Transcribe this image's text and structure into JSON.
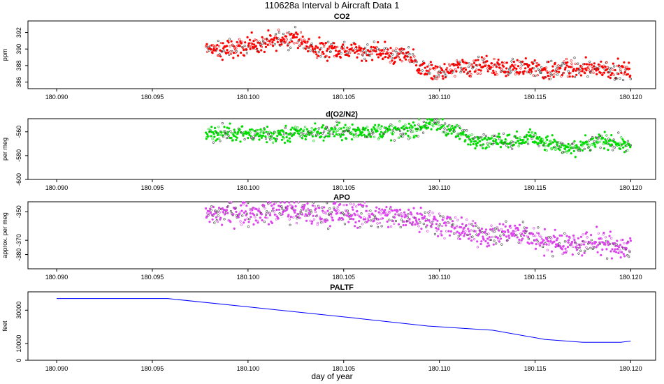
{
  "figure": {
    "title": "110628a   Interval b Aircraft Data 1",
    "xlabel": "day of year"
  },
  "chart_data": [
    {
      "type": "scatter",
      "title": "CO2",
      "ylabel": "ppm",
      "color": "#ff0000",
      "xlim": [
        180.0885,
        180.1213
      ],
      "ylim": [
        385.2,
        393.4
      ],
      "x_ticks": [
        "180.090",
        "180.095",
        "180.100",
        "180.105",
        "180.110",
        "180.115",
        "180.120"
      ],
      "y_ticks": [
        "386",
        "388",
        "390",
        "392"
      ],
      "series": [
        {
          "values_desc": "approximate trend sampled every 0.0005 day",
          "x": [
            180.0978,
            180.0985,
            180.099,
            180.0995,
            180.1,
            180.1005,
            180.101,
            180.1015,
            180.102,
            180.1025,
            180.103,
            180.1035,
            180.104,
            180.1045,
            180.105,
            180.1055,
            180.106,
            180.1065,
            180.107,
            180.1075,
            180.108,
            180.1085,
            180.109,
            180.1095,
            180.11,
            180.1105,
            180.111,
            180.1115,
            180.112,
            180.1125,
            180.113,
            180.1135,
            180.114,
            180.1145,
            180.115,
            180.1155,
            180.116,
            180.1165,
            180.117,
            180.1175,
            180.118,
            180.1185,
            180.119,
            180.1195,
            180.12
          ],
          "y": [
            390.2,
            390.0,
            389.9,
            390.2,
            390.6,
            390.4,
            390.7,
            391.0,
            391.3,
            391.5,
            390.5,
            390.0,
            389.9,
            390.0,
            389.8,
            389.7,
            389.7,
            389.9,
            389.6,
            389.2,
            389.3,
            389.3,
            387.4,
            387.3,
            387.2,
            387.3,
            387.8,
            387.5,
            387.8,
            388.0,
            387.6,
            387.6,
            387.7,
            387.7,
            387.8,
            387.3,
            387.4,
            387.8,
            387.5,
            387.6,
            387.7,
            387.7,
            387.5,
            387.5,
            387.2
          ]
        }
      ]
    },
    {
      "type": "scatter",
      "title": "d(O2/N2)",
      "ylabel": "per meg",
      "color": "#00dd00",
      "xlim": [
        180.0885,
        180.1213
      ],
      "ylim": [
        -600,
        -549
      ],
      "x_ticks": [
        "180.090",
        "180.095",
        "180.100",
        "180.105",
        "180.110",
        "180.115",
        "180.120"
      ],
      "y_ticks": [
        "-600",
        "-580",
        "-560"
      ],
      "series": [
        {
          "values_desc": "approximate trend sampled every 0.0005 day",
          "x": [
            180.0978,
            180.0985,
            180.099,
            180.0995,
            180.1,
            180.1005,
            180.101,
            180.1015,
            180.102,
            180.1025,
            180.103,
            180.1035,
            180.104,
            180.1045,
            180.105,
            180.1055,
            180.106,
            180.1065,
            180.107,
            180.1075,
            180.108,
            180.1085,
            180.109,
            180.1095,
            180.11,
            180.1105,
            180.111,
            180.1115,
            180.112,
            180.1125,
            180.113,
            180.1135,
            180.114,
            180.1145,
            180.115,
            180.1155,
            180.116,
            180.1165,
            180.117,
            180.1175,
            180.118,
            180.1185,
            180.119,
            180.1195,
            180.12
          ],
          "y": [
            -562,
            -561,
            -562,
            -560,
            -561,
            -562,
            -562,
            -563,
            -563,
            -562,
            -561,
            -560,
            -560,
            -559,
            -560,
            -560,
            -560,
            -560,
            -559,
            -560,
            -560,
            -558,
            -556,
            -553,
            -554,
            -558,
            -561,
            -565,
            -566,
            -568,
            -566,
            -567,
            -568,
            -566,
            -564,
            -569,
            -571,
            -574,
            -575,
            -572,
            -569,
            -567,
            -568,
            -570,
            -573
          ]
        }
      ]
    },
    {
      "type": "scatter",
      "title": "APO",
      "ylabel": "approx. per meg",
      "color": "#dd44ee",
      "xlim": [
        180.0885,
        180.1213
      ],
      "ylim": [
        -390,
        -343
      ],
      "x_ticks": [
        "180.090",
        "180.095",
        "180.100",
        "180.105",
        "180.110",
        "180.115",
        "180.120"
      ],
      "y_ticks": [
        "-380",
        "-370",
        "-350"
      ],
      "series": [
        {
          "values_desc": "approximate trend sampled every 0.0005 day",
          "x": [
            180.0978,
            180.0985,
            180.099,
            180.0995,
            180.1,
            180.1005,
            180.101,
            180.1015,
            180.102,
            180.1025,
            180.103,
            180.1035,
            180.104,
            180.1045,
            180.105,
            180.1055,
            180.106,
            180.1065,
            180.107,
            180.1075,
            180.108,
            180.1085,
            180.109,
            180.1095,
            180.11,
            180.1105,
            180.111,
            180.1115,
            180.112,
            180.1125,
            180.113,
            180.1135,
            180.114,
            180.1145,
            180.115,
            180.1155,
            180.116,
            180.1165,
            180.117,
            180.1175,
            180.118,
            180.1185,
            180.119,
            180.1195,
            180.12
          ],
          "y": [
            -352,
            -352,
            -351,
            -350,
            -350,
            -350,
            -350,
            -349,
            -350,
            -350,
            -351,
            -351,
            -351,
            -351,
            -352,
            -352,
            -352,
            -353,
            -353,
            -353,
            -354,
            -354,
            -354,
            -356,
            -358,
            -360,
            -362,
            -364,
            -365,
            -366,
            -366,
            -365,
            -366,
            -367,
            -367,
            -370,
            -372,
            -373,
            -372,
            -373,
            -371,
            -372,
            -373,
            -375,
            -378
          ]
        }
      ]
    },
    {
      "type": "line",
      "title": "PALTF",
      "ylabel": "feet",
      "color": "#0000ff",
      "xlim": [
        180.0885,
        180.1213
      ],
      "ylim": [
        0,
        41000
      ],
      "x_ticks": [
        "180.090",
        "180.095",
        "180.100",
        "180.105",
        "180.110",
        "180.115",
        "180.120"
      ],
      "y_ticks": [
        "0",
        "10000",
        "30000"
      ],
      "series": [
        {
          "x": [
            180.09,
            180.0958,
            180.1,
            180.1054,
            180.1094,
            180.1128,
            180.1155,
            180.1175,
            180.1195,
            180.12
          ],
          "y": [
            37000,
            37000,
            32000,
            25500,
            20500,
            18000,
            12500,
            10800,
            10800,
            11500
          ]
        }
      ]
    }
  ]
}
